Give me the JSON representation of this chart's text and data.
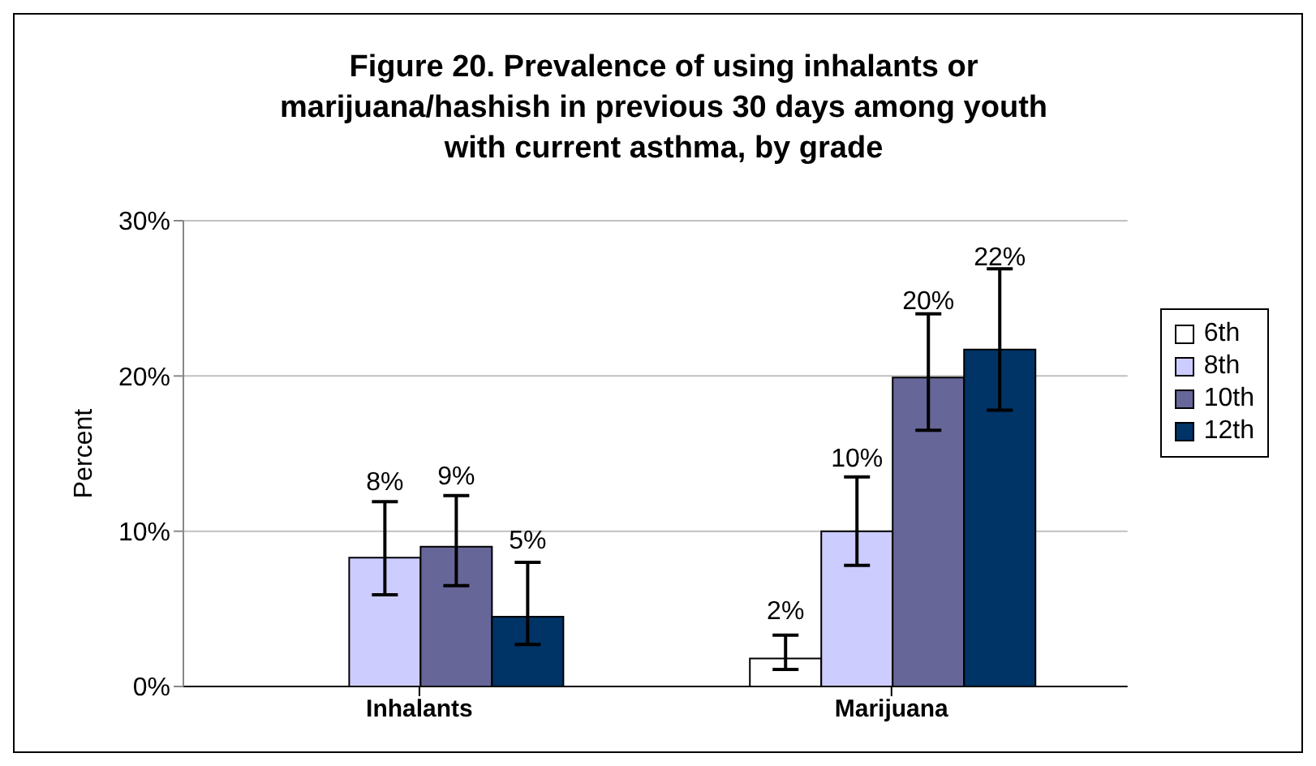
{
  "chart_data": {
    "type": "bar",
    "title": "Figure 20. Prevalence of using inhalants or marijuana/hashish in previous 30 days among youth with current asthma, by grade",
    "ylabel": "Percent",
    "categories": [
      "Inhalants",
      "Marijuana"
    ],
    "series": [
      {
        "name": "6th",
        "color": "#ffffff",
        "values": [
          null,
          1.8
        ],
        "errors": [
          null,
          [
            1.1,
            3.3
          ]
        ],
        "value_labels": [
          null,
          "2%"
        ]
      },
      {
        "name": "8th",
        "color": "#ccccff",
        "values": [
          8.3,
          10.0
        ],
        "errors": [
          [
            5.9,
            11.9
          ],
          [
            7.8,
            13.5
          ]
        ],
        "value_labels": [
          "8%",
          "10%"
        ]
      },
      {
        "name": "10th",
        "color": "#666699",
        "values": [
          9.0,
          19.9
        ],
        "errors": [
          [
            6.5,
            12.3
          ],
          [
            16.5,
            24.0
          ]
        ],
        "value_labels": [
          "9%",
          "20%"
        ]
      },
      {
        "name": "12th",
        "color": "#003366",
        "values": [
          4.5,
          21.7
        ],
        "errors": [
          [
            2.7,
            8.0
          ],
          [
            17.8,
            26.9
          ]
        ],
        "value_labels": [
          "5%",
          "22%"
        ]
      }
    ],
    "ylim": [
      0,
      30
    ],
    "yticks": [
      {
        "value": 0,
        "label": "0%"
      },
      {
        "value": 10,
        "label": "10%"
      },
      {
        "value": 20,
        "label": "20%"
      },
      {
        "value": 30,
        "label": "30%"
      }
    ],
    "grid": "y",
    "legend": "right"
  }
}
